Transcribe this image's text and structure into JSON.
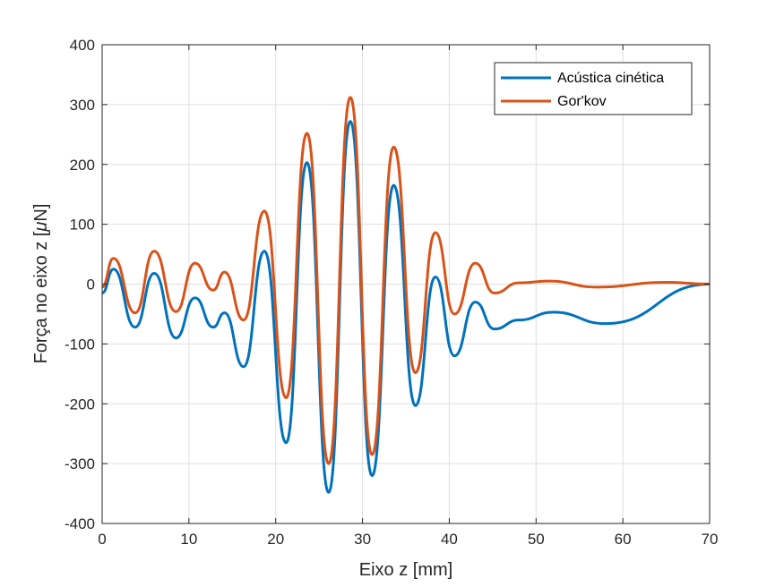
{
  "chart_data": {
    "type": "line",
    "xlabel": "Eixo z [mm]",
    "ylabel_prefix": "Força no eixo z [",
    "ylabel_mu": "μ",
    "ylabel_suffix": "N]",
    "xlim": [
      0,
      70
    ],
    "ylim": [
      -400,
      400
    ],
    "xticks": [
      0,
      10,
      20,
      30,
      40,
      50,
      60,
      70
    ],
    "yticks": [
      -400,
      -300,
      -200,
      -100,
      0,
      100,
      200,
      300,
      400
    ],
    "grid": true,
    "legend_position": "top-right",
    "series": [
      {
        "name": "Acústica cinética",
        "color": "#0072BD",
        "x": [
          0,
          1.3,
          3.8,
          6.0,
          8.5,
          10.7,
          12.8,
          14.1,
          16.3,
          18.7,
          21.2,
          23.6,
          26.1,
          28.6,
          31.1,
          33.6,
          36.1,
          38.4,
          40.6,
          43.0,
          45.2,
          48.0,
          52.0,
          58.0,
          70.0
        ],
        "y": [
          -15,
          25,
          -72,
          18,
          -90,
          -23,
          -72,
          -48,
          -138,
          55,
          -265,
          203,
          -348,
          272,
          -320,
          165,
          -203,
          12,
          -120,
          -30,
          -75,
          -60,
          -47,
          -66,
          0
        ]
      },
      {
        "name": "Gor'kov",
        "color": "#D95319",
        "x": [
          0,
          1.3,
          3.8,
          6.0,
          8.5,
          10.7,
          12.8,
          14.1,
          16.3,
          18.7,
          21.2,
          23.6,
          26.1,
          28.6,
          31.1,
          33.6,
          36.1,
          38.4,
          40.6,
          43.0,
          45.2,
          48.0,
          51.5,
          57.0,
          65.0,
          70.0
        ],
        "y": [
          -5,
          43,
          -48,
          55,
          -46,
          35,
          -10,
          20,
          -60,
          122,
          -190,
          252,
          -300,
          312,
          -285,
          229,
          -148,
          86,
          -50,
          35,
          -15,
          2,
          5,
          -5,
          3,
          0
        ]
      }
    ]
  }
}
